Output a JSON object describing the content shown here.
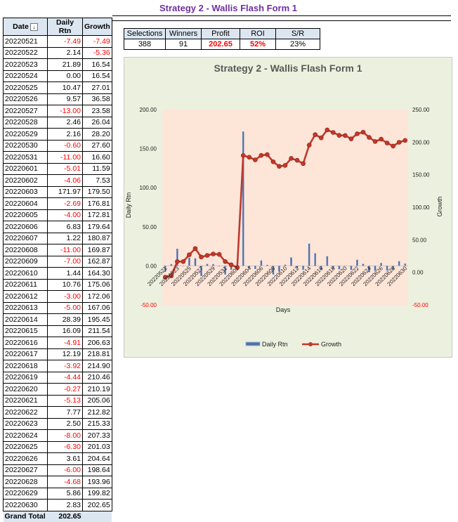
{
  "page_title": "Strategy 2 - Wallis Flash Form 1",
  "table": {
    "headers": [
      "Date",
      "Daily Rtn",
      "Growth"
    ],
    "sort_icon": "sort-filter-icon",
    "rows": [
      [
        "20220521",
        "-7.49",
        "-7.49"
      ],
      [
        "20220522",
        "2.14",
        "-5.36"
      ],
      [
        "20220523",
        "21.89",
        "16.54"
      ],
      [
        "20220524",
        "0.00",
        "16.54"
      ],
      [
        "20220525",
        "10.47",
        "27.01"
      ],
      [
        "20220526",
        "9.57",
        "36.58"
      ],
      [
        "20220527",
        "-13.00",
        "23.58"
      ],
      [
        "20220528",
        "2.46",
        "26.04"
      ],
      [
        "20220529",
        "2.16",
        "28.20"
      ],
      [
        "20220530",
        "-0.60",
        "27.60"
      ],
      [
        "20220531",
        "-11.00",
        "16.60"
      ],
      [
        "20220601",
        "-5.01",
        "11.59"
      ],
      [
        "20220602",
        "-4.06",
        "7.53"
      ],
      [
        "20220603",
        "171.97",
        "179.50"
      ],
      [
        "20220604",
        "-2.69",
        "176.81"
      ],
      [
        "20220605",
        "-4.00",
        "172.81"
      ],
      [
        "20220606",
        "6.83",
        "179.64"
      ],
      [
        "20220607",
        "1.22",
        "180.87"
      ],
      [
        "20220608",
        "-11.00",
        "169.87"
      ],
      [
        "20220609",
        "-7.00",
        "162.87"
      ],
      [
        "20220610",
        "1.44",
        "164.30"
      ],
      [
        "20220611",
        "10.76",
        "175.06"
      ],
      [
        "20220612",
        "-3.00",
        "172.06"
      ],
      [
        "20220613",
        "-5.00",
        "167.06"
      ],
      [
        "20220614",
        "28.39",
        "195.45"
      ],
      [
        "20220615",
        "16.09",
        "211.54"
      ],
      [
        "20220616",
        "-4.91",
        "206.63"
      ],
      [
        "20220617",
        "12.19",
        "218.81"
      ],
      [
        "20220618",
        "-3.92",
        "214.90"
      ],
      [
        "20220619",
        "-4.44",
        "210.46"
      ],
      [
        "20220620",
        "-0.27",
        "210.19"
      ],
      [
        "20220621",
        "-5.13",
        "205.06"
      ],
      [
        "20220622",
        "7.77",
        "212.82"
      ],
      [
        "20220623",
        "2.50",
        "215.33"
      ],
      [
        "20220624",
        "-8.00",
        "207.33"
      ],
      [
        "20220625",
        "-6.30",
        "201.03"
      ],
      [
        "20220626",
        "3.61",
        "204.64"
      ],
      [
        "20220627",
        "-6.00",
        "198.64"
      ],
      [
        "20220628",
        "-4.68",
        "193.96"
      ],
      [
        "20220629",
        "5.86",
        "199.82"
      ],
      [
        "20220630",
        "2.83",
        "202.65"
      ]
    ],
    "grand_total_label": "Grand Total",
    "grand_total_value": "202.65"
  },
  "stats": {
    "headers": [
      "Selections",
      "Winners",
      "Profit",
      "ROI",
      "S/R"
    ],
    "values": [
      "388",
      "91",
      "202.65",
      "52%",
      "23%"
    ]
  },
  "colors": {
    "title": "#7030a0",
    "bar_fill": "#4f6fa8",
    "line": "#c0392b",
    "plot_bg": "#fde5d8",
    "chart_bg": "#ebf1de",
    "negative": "#ff0000"
  },
  "chart_data": {
    "type": "bar+line",
    "title": "Strategy 2 - Wallis Flash Form 1",
    "xlabel": "Days",
    "ylabel": "Daily Rtn",
    "y2label": "Growth",
    "ylim": [
      -50,
      200
    ],
    "y2lim": [
      -50,
      250
    ],
    "yticks": [
      "200.00",
      "150.00",
      "100.00",
      "50.00",
      "0.00",
      "-50.00"
    ],
    "y2ticks": [
      "250.00",
      "200.00",
      "150.00",
      "100.00",
      "50.00",
      "0.00",
      "-50.00"
    ],
    "legend": "bottom",
    "x": [
      "20220521",
      "20220522",
      "20220523",
      "20220524",
      "20220525",
      "20220526",
      "20220527",
      "20220528",
      "20220529",
      "20220530",
      "20220531",
      "20220601",
      "20220602",
      "20220603",
      "20220604",
      "20220605",
      "20220606",
      "20220607",
      "20220608",
      "20220609",
      "20220610",
      "20220611",
      "20220612",
      "20220613",
      "20220614",
      "20220615",
      "20220616",
      "20220617",
      "20220618",
      "20220619",
      "20220620",
      "20220621",
      "20220622",
      "20220623",
      "20220624",
      "20220625",
      "20220626",
      "20220627",
      "20220628",
      "20220629",
      "20220630"
    ],
    "xtick_labels": [
      "20220521",
      "20220523",
      "20220525",
      "20220527",
      "20220529",
      "20220531",
      "20220602",
      "20220604",
      "20220606",
      "20220608",
      "20220610",
      "20220612",
      "20220614",
      "20220616",
      "20220618",
      "20220620",
      "20220622",
      "20220624",
      "20220626",
      "20220628",
      "20220630"
    ],
    "series": [
      {
        "name": "Daily Rtn",
        "type": "bar",
        "values": [
          -7.49,
          2.14,
          21.89,
          0.0,
          10.47,
          9.57,
          -13.0,
          2.46,
          2.16,
          -0.6,
          -11.0,
          -5.01,
          -4.06,
          171.97,
          -2.69,
          -4.0,
          6.83,
          1.22,
          -11.0,
          -7.0,
          1.44,
          10.76,
          -3.0,
          -5.0,
          28.39,
          16.09,
          -4.91,
          12.19,
          -3.92,
          -4.44,
          -0.27,
          -5.13,
          7.77,
          2.5,
          -8.0,
          -6.3,
          3.61,
          -6.0,
          -4.68,
          5.86,
          2.83
        ]
      },
      {
        "name": "Growth",
        "type": "line",
        "values": [
          -7.49,
          -5.36,
          16.54,
          16.54,
          27.01,
          36.58,
          23.58,
          26.04,
          28.2,
          27.6,
          16.6,
          11.59,
          7.53,
          179.5,
          176.81,
          172.81,
          179.64,
          180.87,
          169.87,
          162.87,
          164.3,
          175.06,
          172.06,
          167.06,
          195.45,
          211.54,
          206.63,
          218.81,
          214.9,
          210.46,
          210.19,
          205.06,
          212.82,
          215.33,
          207.33,
          201.03,
          204.64,
          198.64,
          193.96,
          199.82,
          202.65
        ]
      }
    ]
  }
}
